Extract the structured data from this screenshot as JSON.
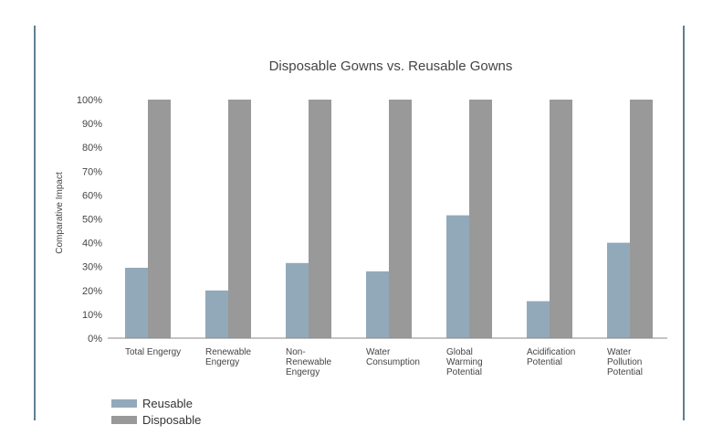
{
  "chart_data": {
    "type": "bar",
    "title": "Disposable Gowns vs. Reusable Gowns",
    "ylabel": "Comparative Impact",
    "xlabel": "",
    "ylim": [
      0,
      100
    ],
    "yticks": [
      "0%",
      "10%",
      "20%",
      "30%",
      "40%",
      "50%",
      "60%",
      "70%",
      "80%",
      "90%",
      "100%"
    ],
    "categories": [
      [
        "Total Engergy"
      ],
      [
        "Renewable",
        "Engergy"
      ],
      [
        "Non-",
        "Renewable",
        "Engergy"
      ],
      [
        "Water",
        "Consumption"
      ],
      [
        "Global",
        "Warming",
        "Potential"
      ],
      [
        "Acidification",
        "Potential"
      ],
      [
        "Water",
        "Pollution",
        "Potential"
      ]
    ],
    "series": [
      {
        "name": "Reusable",
        "color": "#92a9ba",
        "values": [
          29.5,
          20,
          31.5,
          28,
          51.5,
          15.5,
          40
        ]
      },
      {
        "name": "Disposable",
        "color": "#999999",
        "values": [
          100,
          100,
          100,
          100,
          100,
          100,
          100
        ]
      }
    ],
    "legend_position": "bottom-left",
    "grid": false
  }
}
